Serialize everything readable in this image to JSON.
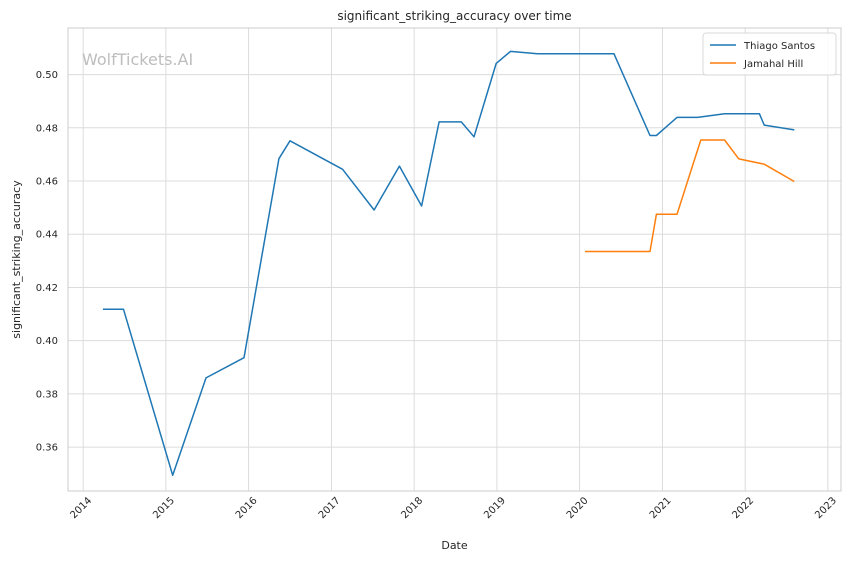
{
  "watermark": "WolfTickets.AI",
  "chart_data": {
    "type": "line",
    "title": "significant_striking_accuracy over time",
    "xlabel": "Date",
    "ylabel": "significant_striking_accuracy",
    "x_ticks": [
      "2014",
      "2015",
      "2016",
      "2017",
      "2018",
      "2019",
      "2020",
      "2021",
      "2022",
      "2023"
    ],
    "y_ticks": [
      "0.36",
      "0.38",
      "0.40",
      "0.42",
      "0.44",
      "0.46",
      "0.48",
      "0.50"
    ],
    "xlim": [
      "2013-10-26",
      "2023-02-28"
    ],
    "ylim": [
      0.3435,
      0.5175
    ],
    "grid": true,
    "legend_position": "top-right",
    "series": [
      {
        "name": "Thiago Santos",
        "color": "#1f77b4",
        "points": [
          [
            "2014-03-29",
            0.4118
          ],
          [
            "2014-06-28",
            0.4118
          ],
          [
            "2015-01-31",
            0.3494
          ],
          [
            "2015-06-27",
            0.386
          ],
          [
            "2015-12-12",
            0.3936
          ],
          [
            "2016-05-14",
            0.4684
          ],
          [
            "2016-07-02",
            0.4751
          ],
          [
            "2017-02-19",
            0.4644
          ],
          [
            "2017-07-08",
            0.4491
          ],
          [
            "2017-10-28",
            0.4656
          ],
          [
            "2018-02-03",
            0.4506
          ],
          [
            "2018-04-21",
            0.4822
          ],
          [
            "2018-07-28",
            0.4822
          ],
          [
            "2018-09-22",
            0.4766
          ],
          [
            "2018-12-29",
            0.5042
          ],
          [
            "2019-03-02",
            0.5087
          ],
          [
            "2019-06-29",
            0.5078
          ],
          [
            "2020-06-01",
            0.5078
          ],
          [
            "2020-11-07",
            0.4771
          ],
          [
            "2020-12-05",
            0.4771
          ],
          [
            "2021-03-06",
            0.4839
          ],
          [
            "2021-06-05",
            0.4839
          ],
          [
            "2021-10-02",
            0.4853
          ],
          [
            "2022-03-05",
            0.4853
          ],
          [
            "2022-03-26",
            0.481
          ],
          [
            "2022-08-06",
            0.4792
          ]
        ]
      },
      {
        "name": "Jamahal Hill",
        "color": "#ff7f0e",
        "points": [
          [
            "2020-01-25",
            0.4335
          ],
          [
            "2020-11-07",
            0.4335
          ],
          [
            "2020-12-05",
            0.4475
          ],
          [
            "2021-03-06",
            0.4475
          ],
          [
            "2021-06-19",
            0.4754
          ],
          [
            "2021-10-02",
            0.4754
          ],
          [
            "2021-12-04",
            0.4683
          ],
          [
            "2022-03-26",
            0.4663
          ],
          [
            "2022-08-06",
            0.4598
          ]
        ]
      }
    ]
  }
}
